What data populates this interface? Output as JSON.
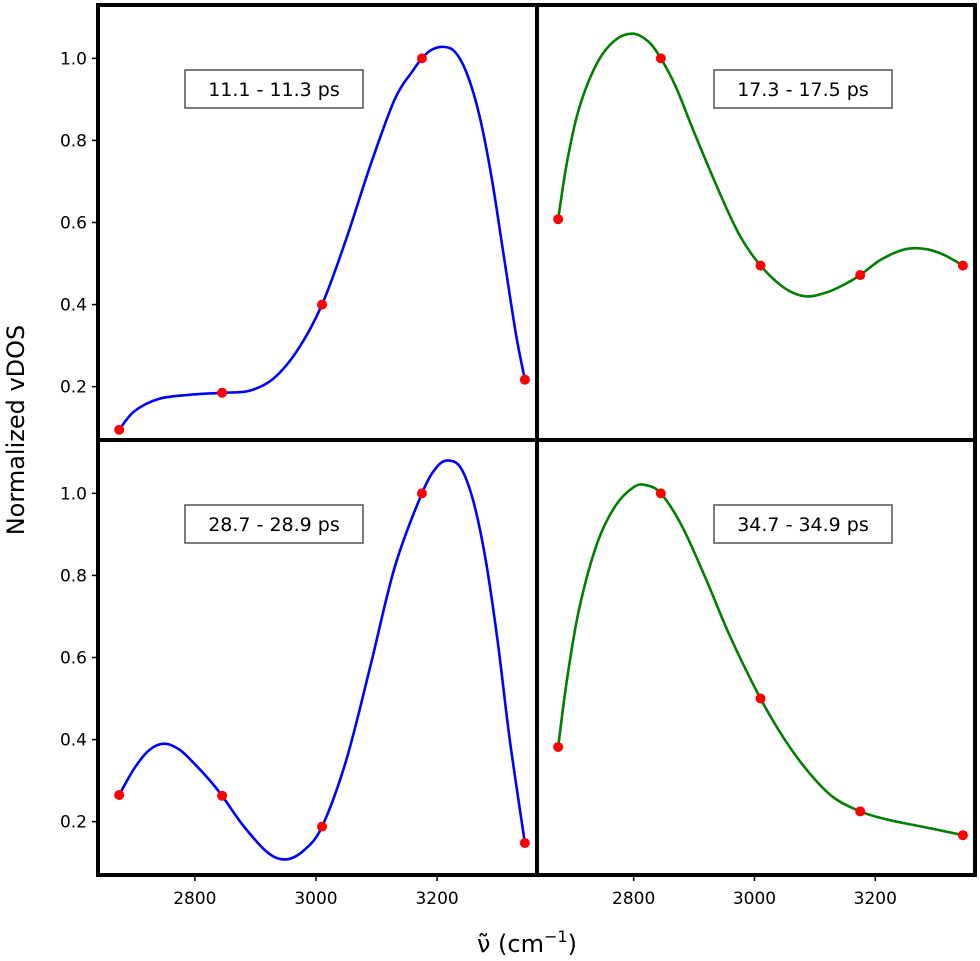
{
  "figure": {
    "ylabel": "Normalized vDOS",
    "xlabel": "ν̃ (cm",
    "xlabel_sup": "−1",
    "xlabel_close": ")"
  },
  "chart_data": [
    {
      "type": "line",
      "panel": "top-left",
      "annotation": "11.1 - 11.3 ps",
      "xlim": [
        2640,
        3365
      ],
      "ylim": [
        0.07,
        1.13
      ],
      "xticks": [],
      "yticks": [
        0.2,
        0.4,
        0.6,
        0.8,
        1.0
      ],
      "line_color": "#0000ff",
      "marker_color": "#ff0000",
      "points": {
        "x": [
          2675,
          2845,
          3010,
          3175,
          3345
        ],
        "y": [
          0.095,
          0.185,
          0.4,
          1.0,
          0.217
        ]
      },
      "curve": {
        "x": [
          2675,
          2700,
          2740,
          2790,
          2845,
          2890,
          2930,
          2970,
          3010,
          3050,
          3090,
          3130,
          3160,
          3175,
          3190,
          3210,
          3230,
          3250,
          3270,
          3290,
          3310,
          3330,
          3345
        ],
        "y": [
          0.095,
          0.14,
          0.17,
          0.18,
          0.185,
          0.19,
          0.22,
          0.29,
          0.4,
          0.56,
          0.74,
          0.9,
          0.97,
          1.0,
          1.02,
          1.028,
          1.015,
          0.96,
          0.86,
          0.71,
          0.52,
          0.33,
          0.217
        ]
      }
    },
    {
      "type": "line",
      "panel": "top-right",
      "annotation": "17.3 - 17.5 ps",
      "xlim": [
        2640,
        3365
      ],
      "ylim": [
        0.07,
        1.13
      ],
      "xticks": [],
      "yticks": [],
      "line_color": "#007f00",
      "marker_color": "#ff0000",
      "points": {
        "x": [
          2675,
          2845,
          3010,
          3175,
          3345
        ],
        "y": [
          0.608,
          1.0,
          0.495,
          0.472,
          0.495
        ]
      },
      "curve": {
        "x": [
          2675,
          2690,
          2710,
          2740,
          2770,
          2800,
          2825,
          2845,
          2870,
          2900,
          2940,
          2975,
          3010,
          3050,
          3085,
          3120,
          3150,
          3175,
          3210,
          3250,
          3285,
          3315,
          3345
        ],
        "y": [
          0.608,
          0.75,
          0.88,
          0.99,
          1.045,
          1.06,
          1.04,
          1.0,
          0.93,
          0.82,
          0.68,
          0.57,
          0.495,
          0.44,
          0.42,
          0.43,
          0.45,
          0.472,
          0.51,
          0.535,
          0.535,
          0.52,
          0.495
        ]
      }
    },
    {
      "type": "line",
      "panel": "bottom-left",
      "annotation": "28.7 - 28.9 ps",
      "xlim": [
        2640,
        3365
      ],
      "ylim": [
        0.07,
        1.13
      ],
      "xticks": [
        2800,
        3000,
        3200
      ],
      "yticks": [
        0.2,
        0.4,
        0.6,
        0.8,
        1.0
      ],
      "line_color": "#0000ff",
      "marker_color": "#ff0000",
      "points": {
        "x": [
          2675,
          2845,
          3010,
          3175,
          3345
        ],
        "y": [
          0.265,
          0.263,
          0.188,
          1.0,
          0.148
        ]
      },
      "curve": {
        "x": [
          2675,
          2700,
          2725,
          2750,
          2775,
          2800,
          2825,
          2845,
          2880,
          2920,
          2950,
          2980,
          3010,
          3050,
          3090,
          3130,
          3175,
          3200,
          3220,
          3240,
          3260,
          3280,
          3300,
          3320,
          3345
        ],
        "y": [
          0.265,
          0.33,
          0.375,
          0.39,
          0.375,
          0.34,
          0.3,
          0.263,
          0.19,
          0.125,
          0.108,
          0.13,
          0.188,
          0.35,
          0.58,
          0.82,
          1.0,
          1.065,
          1.08,
          1.06,
          0.98,
          0.84,
          0.64,
          0.4,
          0.148
        ]
      }
    },
    {
      "type": "line",
      "panel": "bottom-right",
      "annotation": "34.7 - 34.9 ps",
      "xlim": [
        2640,
        3365
      ],
      "ylim": [
        0.07,
        1.13
      ],
      "xticks": [
        2800,
        3000,
        3200
      ],
      "yticks": [],
      "line_color": "#007f00",
      "marker_color": "#ff0000",
      "points": {
        "x": [
          2675,
          2845,
          3010,
          3175,
          3345
        ],
        "y": [
          0.382,
          1.0,
          0.5,
          0.225,
          0.167
        ]
      },
      "curve": {
        "x": [
          2675,
          2690,
          2710,
          2740,
          2770,
          2800,
          2820,
          2845,
          2880,
          2920,
          2960,
          3010,
          3050,
          3090,
          3130,
          3175,
          3220,
          3270,
          3310,
          3345
        ],
        "y": [
          0.382,
          0.55,
          0.72,
          0.88,
          0.97,
          1.015,
          1.02,
          1.0,
          0.92,
          0.79,
          0.65,
          0.5,
          0.4,
          0.32,
          0.26,
          0.225,
          0.205,
          0.19,
          0.178,
          0.167
        ]
      }
    }
  ]
}
